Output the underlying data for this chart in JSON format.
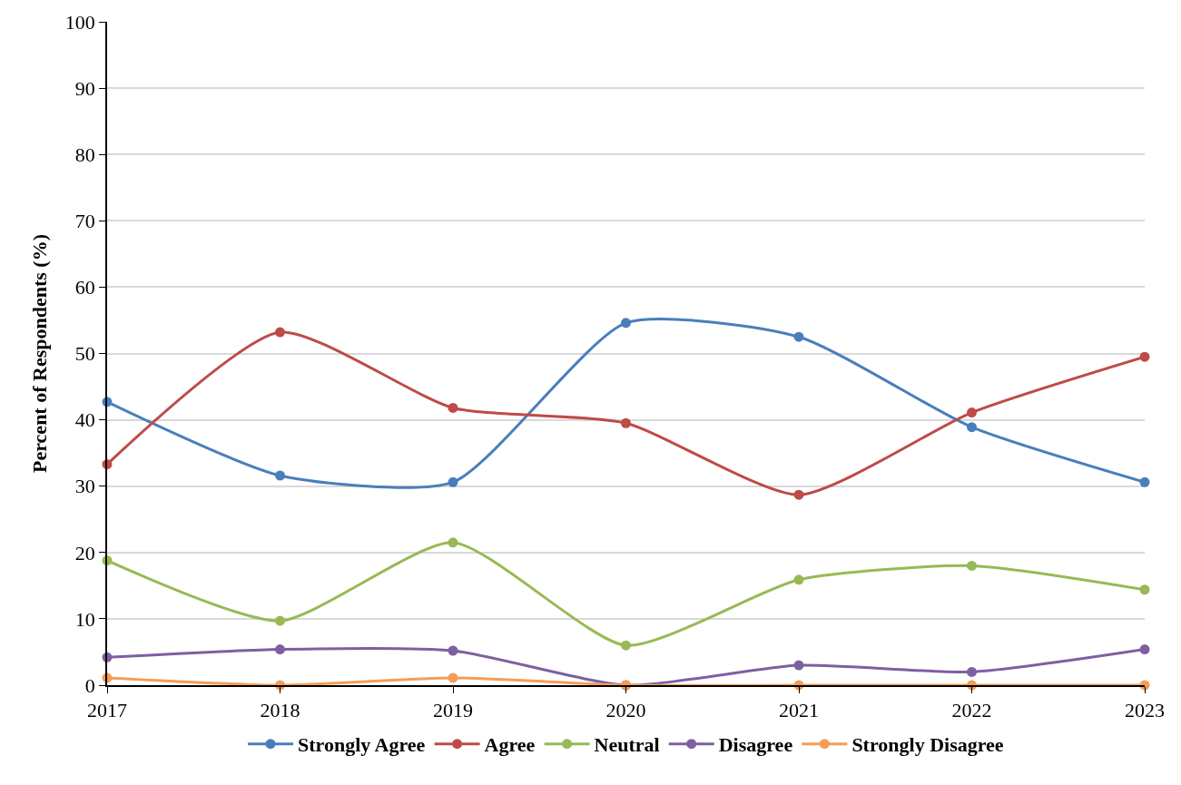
{
  "chart_data": {
    "type": "line",
    "ylabel": "Percent of Respondents (%)",
    "x": [
      2017,
      2018,
      2019,
      2020,
      2021,
      2022,
      2023
    ],
    "xlim": [
      2017,
      2023
    ],
    "xticks": [
      2017,
      2018,
      2019,
      2020,
      2021,
      2022,
      2023
    ],
    "ylim": [
      0,
      100
    ],
    "yticks": [
      0,
      10,
      20,
      30,
      40,
      50,
      60,
      70,
      80,
      90,
      100
    ],
    "grid": "y",
    "legend": "bottom",
    "marker": "circle",
    "line_style": "solid",
    "series": [
      {
        "name": "Strongly Agree",
        "color": "#4a7ebb",
        "values": [
          42.7,
          31.6,
          30.6,
          54.6,
          52.5,
          38.9,
          30.6
        ]
      },
      {
        "name": "Agree",
        "color": "#be4b48",
        "values": [
          33.3,
          53.2,
          41.8,
          39.5,
          28.7,
          41.1,
          49.5
        ]
      },
      {
        "name": "Neutral",
        "color": "#98b954",
        "values": [
          18.8,
          9.7,
          21.5,
          6.0,
          15.9,
          18.0,
          14.4
        ]
      },
      {
        "name": "Disagree",
        "color": "#7d60a0",
        "values": [
          4.2,
          5.4,
          5.2,
          0,
          3.0,
          2.0,
          5.4
        ]
      },
      {
        "name": "Strongly Disagree",
        "color": "#f59d56",
        "values": [
          1.1,
          0,
          1.1,
          0,
          0,
          0,
          0
        ]
      }
    ]
  }
}
